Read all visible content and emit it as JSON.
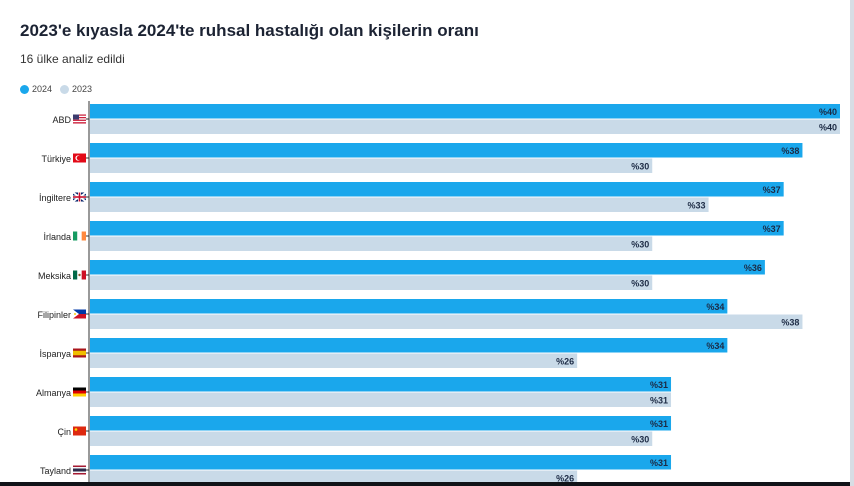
{
  "header": {
    "title": "2023'e kıyasla 2024'te ruhsal hastalığı olan kişilerin oranı",
    "subtitle": "16 ülke analiz edildi"
  },
  "colors": {
    "series_2024": "#1aa7ec",
    "series_2023": "#c9dae8",
    "label_text": "#1c2a44",
    "axis": "#333333"
  },
  "chart_data": {
    "type": "bar",
    "orientation": "horizontal",
    "categories": [
      "ABD",
      "Türkiye",
      "İngiltere",
      "İrlanda",
      "Meksika",
      "Filipinler",
      "İspanya",
      "Almanya",
      "Çin",
      "Tayland"
    ],
    "flags": [
      "us-flag-icon",
      "tr-flag-icon",
      "gb-flag-icon",
      "ie-flag-icon",
      "mx-flag-icon",
      "ph-flag-icon",
      "es-flag-icon",
      "de-flag-icon",
      "cn-flag-icon",
      "th-flag-icon"
    ],
    "series": [
      {
        "name": "2024",
        "values": [
          40,
          38,
          37,
          37,
          36,
          34,
          34,
          31,
          31,
          31
        ],
        "labels": [
          "%40",
          "%38",
          "%37",
          "%37",
          "%36",
          "%34",
          "%34",
          "%31",
          "%31",
          "%31"
        ]
      },
      {
        "name": "2023",
        "values": [
          40,
          30,
          33,
          30,
          30,
          38,
          26,
          31,
          30,
          26
        ],
        "labels": [
          "%40",
          "%30",
          "%33",
          "%30",
          "%30",
          "%38",
          "%26",
          "%31",
          "%30",
          "%26"
        ]
      }
    ],
    "xlim": [
      0,
      40
    ],
    "legend_position": "top-left",
    "grid": false
  }
}
